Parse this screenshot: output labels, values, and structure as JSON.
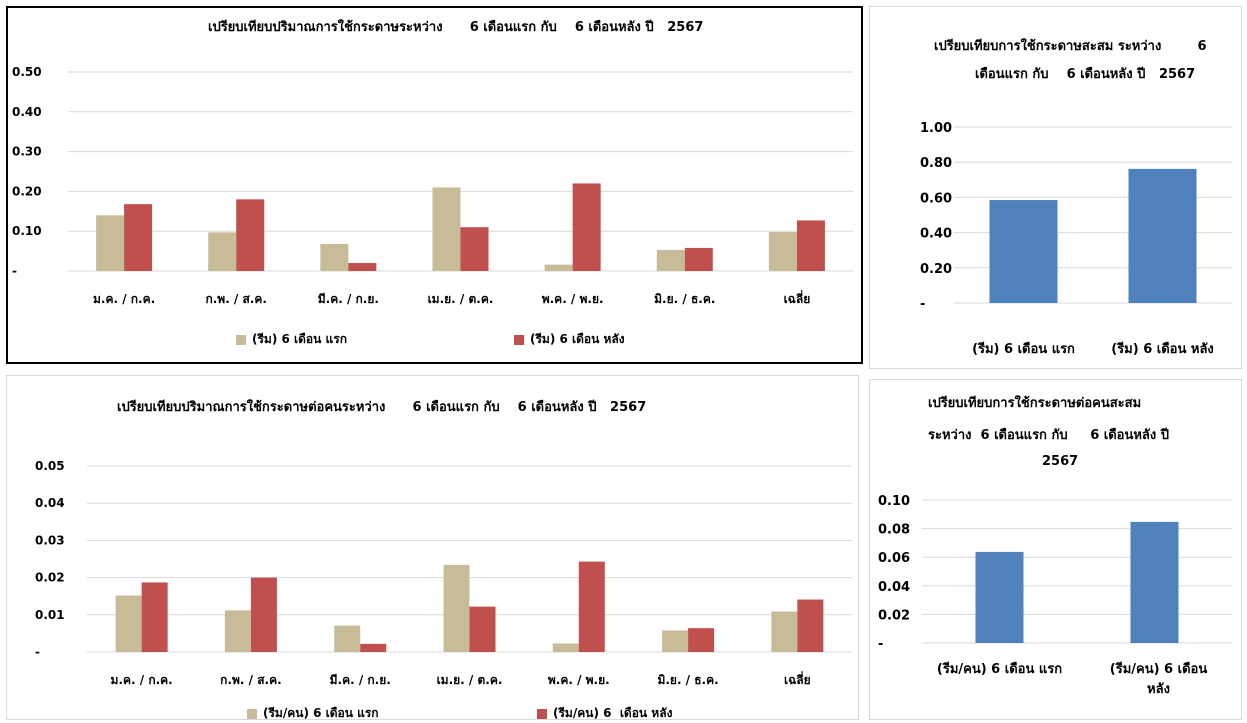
{
  "colors": {
    "first_half": "#c8bc98",
    "second_half": "#c0504d",
    "blue": "#4f81bd",
    "grid": "#d9d9d9"
  },
  "chart_data": [
    {
      "type": "bar",
      "title": "เปรียบเทียบปริมาณการใช้กระดาษระหว่าง      6 เดือนแรก กับ    6 เดือนหลัง ปี   2567",
      "categories": [
        "ม.ค. / ก.ค.",
        "ก.พ. / ส.ค.",
        "มี.ค. / ก.ย.",
        "เม.ย. / ต.ค.",
        "พ.ค. / พ.ย.",
        "มิ.ย. / ธ.ค.",
        "เฉลี่ย"
      ],
      "yticks": [
        "-",
        "0.10",
        "0.20",
        "0.30",
        "0.40",
        "0.50"
      ],
      "ylim": [
        0,
        0.5
      ],
      "series": [
        {
          "name": "(รีม) 6 เดือน แรก",
          "values": [
            0.14,
            0.097,
            0.068,
            0.21,
            0.016,
            0.053,
            0.098
          ]
        },
        {
          "name": "(รีม) 6 เดือน หลัง",
          "values": [
            0.168,
            0.18,
            0.02,
            0.11,
            0.22,
            0.058,
            0.127
          ]
        }
      ]
    },
    {
      "type": "bar",
      "title": "เปรียบเทียบปริมาณการใช้กระดาษต่อคนระหว่าง      6 เดือนแรก กับ    6 เดือนหลัง ปี   2567",
      "categories": [
        "ม.ค. / ก.ค.",
        "ก.พ. / ส.ค.",
        "มี.ค. / ก.ย.",
        "เม.ย. / ต.ค.",
        "พ.ค. / พ.ย.",
        "มิ.ย. / ธ.ค.",
        "เฉลี่ย"
      ],
      "yticks": [
        "-",
        "0.01",
        "0.02",
        "0.03",
        "0.04",
        "0.05"
      ],
      "ylim": [
        0,
        0.05
      ],
      "series": [
        {
          "name": "(รีม/คน) 6 เดือน แรก",
          "values": [
            0.0152,
            0.0112,
            0.0071,
            0.0234,
            0.0023,
            0.0058,
            0.0109
          ]
        },
        {
          "name": "(รีม/คน) 6  เดือน หลัง",
          "values": [
            0.0187,
            0.02,
            0.0022,
            0.0122,
            0.0243,
            0.0064,
            0.0141
          ]
        }
      ]
    },
    {
      "type": "bar",
      "title_lines": [
        "เปรียบเทียบการใช้กระดาษสะสม ระหว่าง        6",
        "เดือนแรก กับ    6 เดือนหลัง ปี   2567"
      ],
      "categories": [
        "(รีม) 6 เดือน แรก",
        "(รีม) 6 เดือน หลัง"
      ],
      "yticks": [
        "-",
        "0.20",
        "0.40",
        "0.60",
        "0.80",
        "1.00"
      ],
      "ylim": [
        0,
        1.0
      ],
      "values": [
        0.585,
        0.762
      ]
    },
    {
      "type": "bar",
      "title_lines": [
        "เปรียบเทียบการใช้กระดาษต่อคนสะสม",
        "ระหว่าง  6 เดือนแรก กับ     6 เดือนหลัง ปี",
        "2567"
      ],
      "categories": [
        "(รีม/คน) 6 เดือน แรก",
        "(รีม/คน) 6  เดือน หลัง"
      ],
      "category_lines": [
        [
          "(รีม/คน) 6 เดือน แรก"
        ],
        [
          "(รีม/คน) 6  เดือน",
          "หลัง"
        ]
      ],
      "yticks": [
        "-",
        "0.02",
        "0.04",
        "0.06",
        "0.08",
        "0.10"
      ],
      "ylim": [
        0,
        0.1
      ],
      "values": [
        0.0637,
        0.0847
      ]
    }
  ]
}
